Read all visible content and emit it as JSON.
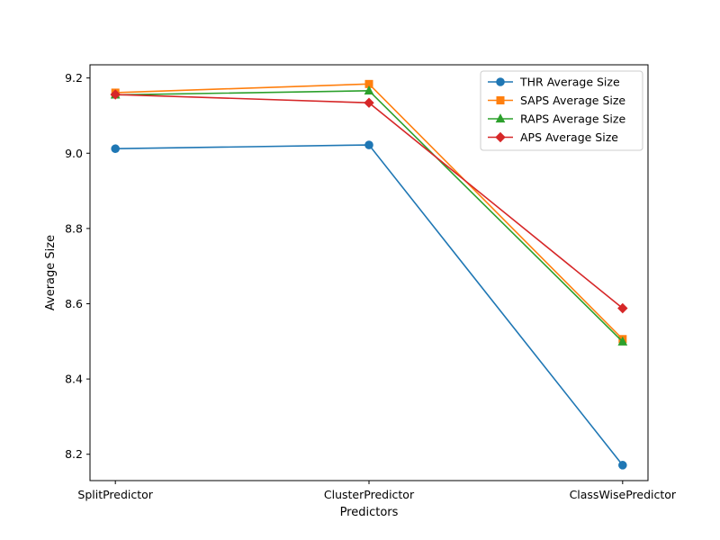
{
  "chart_data": {
    "type": "line",
    "title": "",
    "xlabel": "Predictors",
    "ylabel": "Average Size",
    "categories": [
      "SplitPredictor",
      "ClusterPredictor",
      "ClassWisePredictor"
    ],
    "ylim": [
      8.13,
      9.235
    ],
    "yticks": [
      8.2,
      8.4,
      8.6,
      8.8,
      9.0,
      9.2
    ],
    "ytick_labels": [
      "8.2",
      "8.4",
      "8.6",
      "8.8",
      "9.0",
      "9.2"
    ],
    "grid": false,
    "legend_position": "top-right",
    "series": [
      {
        "name": "THR Average Size",
        "values": [
          9.012,
          9.022,
          8.171
        ],
        "color": "#1f77b4",
        "marker": "circle"
      },
      {
        "name": "SAPS Average Size",
        "values": [
          9.161,
          9.184,
          8.506
        ],
        "color": "#ff7f0e",
        "marker": "square"
      },
      {
        "name": "RAPS Average Size",
        "values": [
          9.155,
          9.166,
          8.499
        ],
        "color": "#2ca02c",
        "marker": "triangle"
      },
      {
        "name": "APS Average Size",
        "values": [
          9.156,
          9.134,
          8.588
        ],
        "color": "#d62728",
        "marker": "diamond"
      }
    ]
  }
}
